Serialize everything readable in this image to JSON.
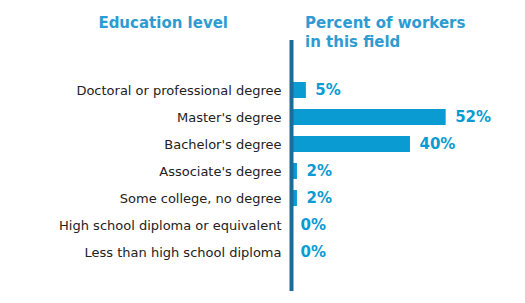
{
  "chart_data": {
    "type": "bar",
    "orientation": "horizontal",
    "ylabel": "Education level",
    "xlabel": "Percent of workers in this field",
    "categories": [
      "Doctoral or professional degree",
      "Master's degree",
      "Bachelor's degree",
      "Associate's degree",
      "Some college, no degree",
      "High school diploma or equivalent",
      "Less than high school diploma"
    ],
    "values": [
      5,
      52,
      40,
      2,
      2,
      0,
      0
    ],
    "value_labels": [
      "5%",
      "52%",
      "40%",
      "2%",
      "2%",
      "0%",
      "0%"
    ],
    "color": "#0a9bd3",
    "xlim": [
      0,
      78
    ],
    "tick_labels": "y",
    "data_labels": true
  }
}
